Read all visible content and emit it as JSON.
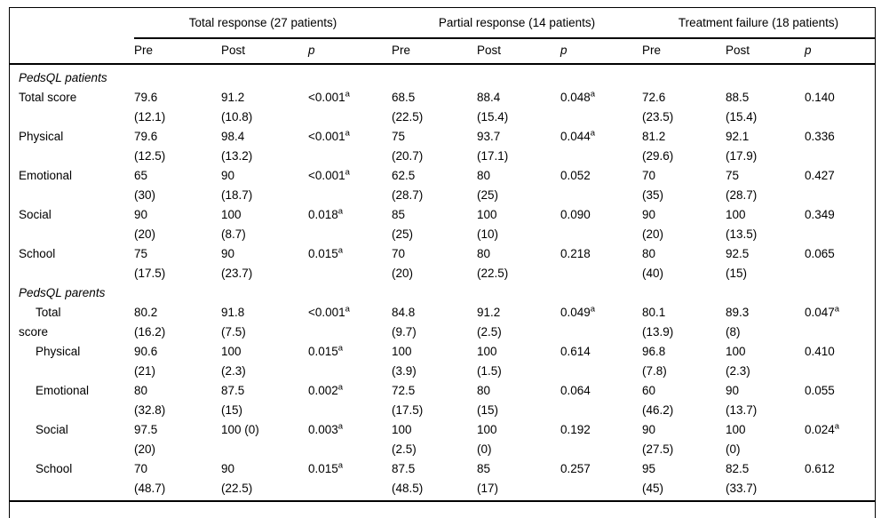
{
  "page": {
    "background": "#ffffff",
    "text_color": "#000000",
    "rule_color": "#000000"
  },
  "table": {
    "groups": [
      {
        "label": "Total response (27 patients)"
      },
      {
        "label": "Partial response (14 patients)"
      },
      {
        "label": "Treatment failure (18 patients)"
      }
    ],
    "columns": [
      {
        "label": "Pre",
        "italic": false
      },
      {
        "label": "Post",
        "italic": false
      },
      {
        "label": "p",
        "italic": true
      }
    ],
    "sections": [
      {
        "title": "PedsQL patients",
        "rows": [
          {
            "label": "Total score",
            "indent": false,
            "cells": [
              {
                "v": "79.6",
                "s": "(12.1)"
              },
              {
                "v": "91.2",
                "s": "(10.8)"
              },
              {
                "v": "<0.001",
                "sup": "a"
              },
              {
                "v": "68.5",
                "s": "(22.5)"
              },
              {
                "v": "88.4",
                "s": "(15.4)"
              },
              {
                "v": "0.048",
                "sup": "a"
              },
              {
                "v": "72.6",
                "s": "(23.5)"
              },
              {
                "v": "88.5",
                "s": "(15.4)"
              },
              {
                "v": "0.140"
              }
            ]
          },
          {
            "label": "Physical",
            "indent": false,
            "cells": [
              {
                "v": "79.6",
                "s": "(12.5)"
              },
              {
                "v": "98.4",
                "s": "(13.2)"
              },
              {
                "v": "<0.001",
                "sup": "a"
              },
              {
                "v": "75",
                "s": "(20.7)"
              },
              {
                "v": "93.7",
                "s": "(17.1)"
              },
              {
                "v": "0.044",
                "sup": "a"
              },
              {
                "v": "81.2",
                "s": "(29.6)"
              },
              {
                "v": "92.1",
                "s": "(17.9)"
              },
              {
                "v": "0.336"
              }
            ]
          },
          {
            "label": "Emotional",
            "indent": false,
            "cells": [
              {
                "v": "65",
                "s": "(30)"
              },
              {
                "v": "90",
                "s": "(18.7)"
              },
              {
                "v": "<0.001",
                "sup": "a"
              },
              {
                "v": "62.5",
                "s": "(28.7)"
              },
              {
                "v": "80",
                "s": "(25)"
              },
              {
                "v": "0.052"
              },
              {
                "v": "70",
                "s": "(35)"
              },
              {
                "v": "75",
                "s": "(28.7)"
              },
              {
                "v": "0.427"
              }
            ]
          },
          {
            "label": "Social",
            "indent": false,
            "cells": [
              {
                "v": "90",
                "s": "(20)"
              },
              {
                "v": "100",
                "s": "(8.7)"
              },
              {
                "v": "0.018",
                "sup": "a"
              },
              {
                "v": "85",
                "s": "(25)"
              },
              {
                "v": "100",
                "s": "(10)"
              },
              {
                "v": "0.090"
              },
              {
                "v": "90",
                "s": "(20)"
              },
              {
                "v": "100",
                "s": "(13.5)"
              },
              {
                "v": "0.349"
              }
            ]
          },
          {
            "label": "School",
            "indent": false,
            "cells": [
              {
                "v": "75",
                "s": "(17.5)"
              },
              {
                "v": "90",
                "s": "(23.7)"
              },
              {
                "v": "0.015",
                "sup": "a"
              },
              {
                "v": "70",
                "s": "(20)"
              },
              {
                "v": "80",
                "s": "(22.5)"
              },
              {
                "v": "0.218"
              },
              {
                "v": "80",
                "s": "(40)"
              },
              {
                "v": "92.5",
                "s": "(15)"
              },
              {
                "v": "0.065"
              }
            ]
          }
        ]
      },
      {
        "title": "PedsQL parents",
        "rows": [
          {
            "label": "Total\nscore",
            "indent": true,
            "cells": [
              {
                "v": "80.2",
                "s": "(16.2)"
              },
              {
                "v": "91.8",
                "s": "(7.5)"
              },
              {
                "v": "<0.001",
                "sup": "a"
              },
              {
                "v": "84.8",
                "s": "(9.7)"
              },
              {
                "v": "91.2",
                "s": "(2.5)"
              },
              {
                "v": "0.049",
                "sup": "a"
              },
              {
                "v": "80.1",
                "s": "(13.9)"
              },
              {
                "v": "89.3",
                "s": "(8)"
              },
              {
                "v": "0.047",
                "sup": "a"
              }
            ]
          },
          {
            "label": "Physical",
            "indent": true,
            "cells": [
              {
                "v": "90.6",
                "s": "(21)"
              },
              {
                "v": "100",
                "s": "(2.3)"
              },
              {
                "v": "0.015",
                "sup": "a"
              },
              {
                "v": "100",
                "s": "(3.9)"
              },
              {
                "v": "100",
                "s": "(1.5)"
              },
              {
                "v": "0.614"
              },
              {
                "v": "96.8",
                "s": "(7.8)"
              },
              {
                "v": "100",
                "s": "(2.3)"
              },
              {
                "v": "0.410"
              }
            ]
          },
          {
            "label": "Emotional",
            "indent": true,
            "cells": [
              {
                "v": "80",
                "s": "(32.8)"
              },
              {
                "v": "87.5",
                "s": "(15)"
              },
              {
                "v": "0.002",
                "sup": "a"
              },
              {
                "v": "72.5",
                "s": "(17.5)"
              },
              {
                "v": "80",
                "s": "(15)"
              },
              {
                "v": "0.064"
              },
              {
                "v": "60",
                "s": "(46.2)"
              },
              {
                "v": "90",
                "s": "(13.7)"
              },
              {
                "v": "0.055"
              }
            ]
          },
          {
            "label": "Social",
            "indent": true,
            "cells": [
              {
                "v": "97.5",
                "s": "(20)"
              },
              {
                "v": "100 (0)"
              },
              {
                "v": "0.003",
                "sup": "a"
              },
              {
                "v": "100",
                "s": "(2.5)"
              },
              {
                "v": "100",
                "s": "(0)"
              },
              {
                "v": "0.192"
              },
              {
                "v": "90",
                "s": "(27.5)"
              },
              {
                "v": "100",
                "s": "(0)"
              },
              {
                "v": "0.024",
                "sup": "a"
              }
            ]
          },
          {
            "label": "School",
            "indent": true,
            "cells": [
              {
                "v": "70",
                "s": "(48.7)"
              },
              {
                "v": "90",
                "s": "(22.5)"
              },
              {
                "v": "0.015",
                "sup": "a"
              },
              {
                "v": "87.5",
                "s": "(48.5)"
              },
              {
                "v": "85",
                "s": "(17)"
              },
              {
                "v": "0.257"
              },
              {
                "v": "95",
                "s": "(45)"
              },
              {
                "v": "82.5",
                "s": "(33.7)"
              },
              {
                "v": "0.612"
              }
            ]
          }
        ]
      }
    ]
  }
}
